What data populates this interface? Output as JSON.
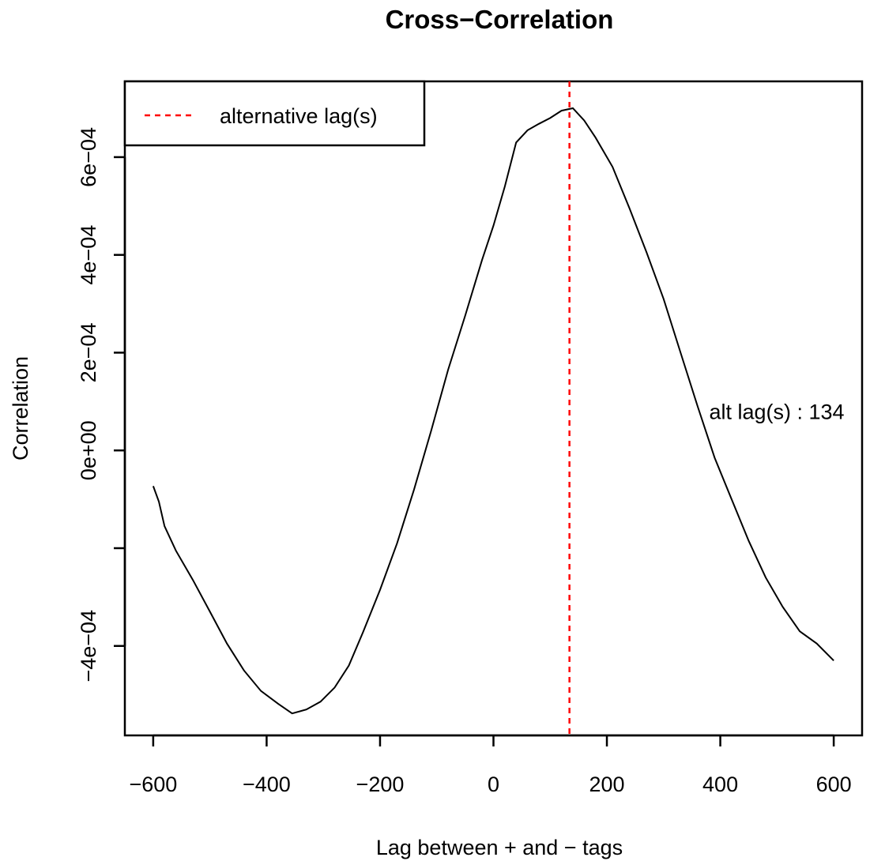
{
  "chart_data": {
    "type": "line",
    "title": "Cross−Correlation",
    "xlabel": "Lag between + and − tags",
    "ylabel": "Correlation",
    "xlim": [
      -650,
      650
    ],
    "ylim": [
      -0.000583,
      0.000755
    ],
    "x_ticks": [
      -600,
      -400,
      -200,
      0,
      200,
      400,
      600
    ],
    "x_tick_labels": [
      "−600",
      "−400",
      "−200",
      "0",
      "200",
      "400",
      "600"
    ],
    "y_ticks": [
      -0.0004,
      -0.0002,
      0,
      0.0002,
      0.0004,
      0.0006
    ],
    "y_tick_labels": [
      "−4e−04",
      "",
      "0e+00",
      "2e−04",
      "4e−04",
      "6e−04"
    ],
    "grid": false,
    "series": [
      {
        "color": "#000000",
        "points": [
          [
            -600,
            -7.3e-05
          ],
          [
            -590,
            -0.000105
          ],
          [
            -580,
            -0.000155
          ],
          [
            -560,
            -0.000205
          ],
          [
            -530,
            -0.000265
          ],
          [
            -500,
            -0.00033
          ],
          [
            -470,
            -0.000395
          ],
          [
            -440,
            -0.00045
          ],
          [
            -410,
            -0.000492
          ],
          [
            -380,
            -0.000518
          ],
          [
            -355,
            -0.000538
          ],
          [
            -330,
            -0.00053
          ],
          [
            -305,
            -0.000514
          ],
          [
            -280,
            -0.000485
          ],
          [
            -255,
            -0.00044
          ],
          [
            -230,
            -0.000372
          ],
          [
            -200,
            -0.000285
          ],
          [
            -170,
            -0.00019
          ],
          [
            -140,
            -8e-05
          ],
          [
            -110,
            4e-05
          ],
          [
            -80,
            0.000165
          ],
          [
            -50,
            0.000275
          ],
          [
            -20,
            0.00039
          ],
          [
            0,
            0.00046
          ],
          [
            20,
            0.00054
          ],
          [
            40,
            0.00063
          ],
          [
            60,
            0.000655
          ],
          [
            80,
            0.000668
          ],
          [
            100,
            0.00068
          ],
          [
            120,
            0.000695
          ],
          [
            140,
            0.0007
          ],
          [
            160,
            0.000675
          ],
          [
            180,
            0.00064
          ],
          [
            210,
            0.00058
          ],
          [
            240,
            0.000495
          ],
          [
            270,
            0.000405
          ],
          [
            300,
            0.00031
          ],
          [
            330,
            0.0002
          ],
          [
            360,
            9e-05
          ],
          [
            390,
            -1.5e-05
          ],
          [
            420,
            -0.0001
          ],
          [
            450,
            -0.000185
          ],
          [
            480,
            -0.00026
          ],
          [
            510,
            -0.00032
          ],
          [
            540,
            -0.00037
          ],
          [
            570,
            -0.000395
          ],
          [
            600,
            -0.00043
          ]
        ]
      }
    ],
    "vline": {
      "x": 134,
      "color": "#ff0000",
      "style": "dashed"
    },
    "legend": {
      "position": "top-left",
      "label": "alternative lag(s)",
      "color": "#ff0000",
      "style": "dashed"
    },
    "annotation": {
      "text": "alt lag(s) : 134",
      "x": 134,
      "y": 8e-05
    }
  }
}
